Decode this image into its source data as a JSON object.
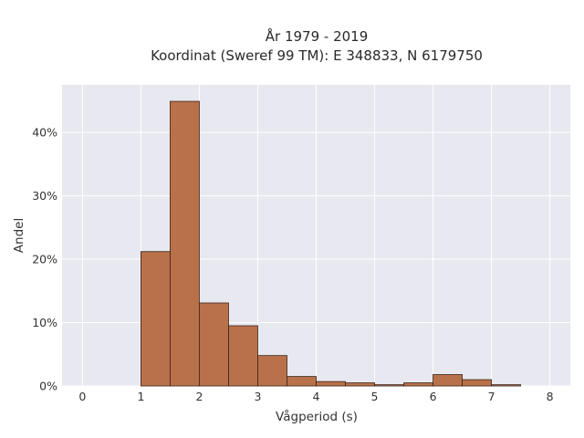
{
  "chart_data": {
    "type": "bar",
    "title_line1": "År 1979 - 2019",
    "title_line2": "Koordinat (Sweref 99 TM): E 348833, N 6179750",
    "xlabel": "Vågperiod (s)",
    "ylabel": "Andel",
    "xlim": [
      -0.35,
      8.35
    ],
    "ylim": [
      0,
      47.5
    ],
    "x_ticks": [
      0,
      1,
      2,
      3,
      4,
      5,
      6,
      7,
      8
    ],
    "y_ticks": [
      0,
      10,
      20,
      30,
      40
    ],
    "y_tick_labels": [
      "0%",
      "10%",
      "20%",
      "30%",
      "40%"
    ],
    "bin_width": 0.5,
    "bins": [
      {
        "start": 1.0,
        "value": 21.2
      },
      {
        "start": 1.5,
        "value": 44.9
      },
      {
        "start": 2.0,
        "value": 13.1
      },
      {
        "start": 2.5,
        "value": 9.5
      },
      {
        "start": 3.0,
        "value": 4.8
      },
      {
        "start": 3.5,
        "value": 1.5
      },
      {
        "start": 4.0,
        "value": 0.7
      },
      {
        "start": 4.5,
        "value": 0.5
      },
      {
        "start": 5.0,
        "value": 0.2
      },
      {
        "start": 5.5,
        "value": 0.5
      },
      {
        "start": 6.0,
        "value": 1.8
      },
      {
        "start": 6.5,
        "value": 1.0
      },
      {
        "start": 7.0,
        "value": 0.2
      }
    ],
    "grid": true,
    "colors": {
      "bar_fill": "#b9714a",
      "bar_stroke": "#3a2418",
      "plot_bg": "#e8e8f0",
      "grid": "#ffffff"
    }
  }
}
